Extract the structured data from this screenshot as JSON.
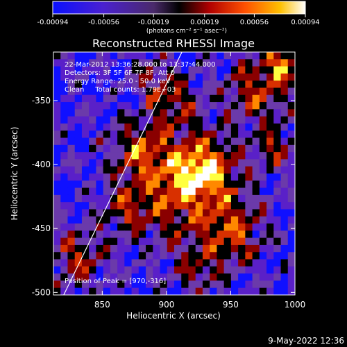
{
  "colorbar": {
    "tick_labels": [
      "-0.00094",
      "-0.00056",
      "-0.00019",
      "0.00019",
      "0.00056",
      "0.00094"
    ],
    "tick_values": [
      -0.00094,
      -0.00056,
      -0.00019,
      0.00019,
      0.00056,
      0.00094
    ],
    "range": [
      -0.00094,
      0.00094
    ],
    "units": "(photons cm⁻² s⁻¹ asec⁻²)"
  },
  "annotations": {
    "time_range": "22-Mar-2012 13:36:28.000 to 13:37:44.000",
    "detectors": "Detectors: 3F 5F 6F 7F 8F, Att 0",
    "energy": "Energy Range: 25.0 - 50.0 keV",
    "method": "Clean     Total counts: 1.79E+03",
    "peak": "Position of Peak = [970,-316]"
  },
  "footer": {
    "timestamp": "9-May-2022 12:36"
  },
  "chart_data": {
    "type": "heatmap",
    "title": "Reconstructed RHESSI Image",
    "xlabel": "Heliocentric X (arcsec)",
    "ylabel": "Heliocentric Y (arcsec)",
    "xlim": [
      812,
      1000
    ],
    "ylim": [
      -502,
      -312
    ],
    "x_ticks": [
      850,
      900,
      950,
      1000
    ],
    "x_tick_labels": [
      "850",
      "900",
      "950",
      "1000"
    ],
    "y_ticks": [
      -350,
      -400,
      -450,
      -500
    ],
    "y_tick_labels": [
      "-350",
      "-400",
      "-450",
      "-500"
    ],
    "limb_line": [
      [
        820,
        -502
      ],
      [
        912,
        -312
      ]
    ],
    "peak": [
      970,
      -316
    ],
    "colormap": [
      "#1010ff",
      "#5a20c8",
      "#6b3aaa",
      "#000000",
      "#8a0000",
      "#d83000",
      "#ff8800",
      "#ffff40",
      "#ffffff"
    ]
  }
}
